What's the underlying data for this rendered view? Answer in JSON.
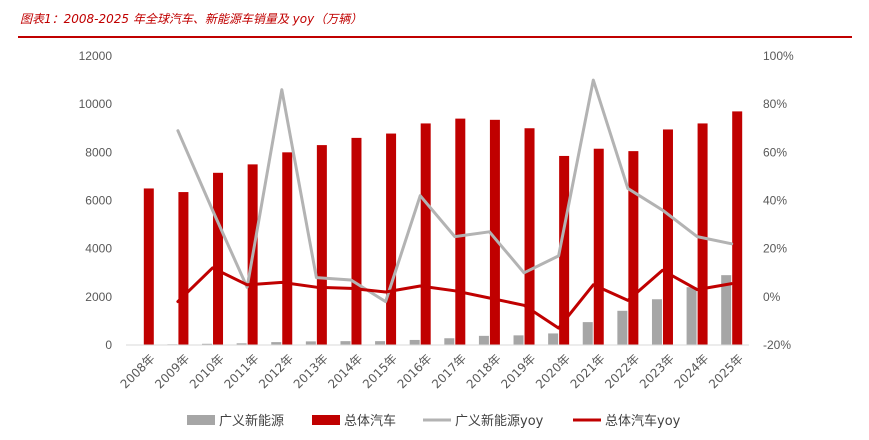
{
  "figure_title": "图表1：2008-2025 年全球汽车、新能源车销量及 yoy（万辆）",
  "colors": {
    "title": "#c00000",
    "nev_bar": "#a6a6a6",
    "total_bar": "#c00000",
    "nev_yoy_line": "#b3b3b3",
    "total_yoy_line": "#c00000"
  },
  "chart_data": {
    "type": "bar",
    "categories": [
      "2008年",
      "2009年",
      "2010年",
      "2011年",
      "2012年",
      "2013年",
      "2014年",
      "2015年",
      "2016年",
      "2017年",
      "2018年",
      "2019年",
      "2020年",
      "2021年",
      "2022年",
      "2023年",
      "2024年",
      "2025年"
    ],
    "y_left": {
      "ylim": [
        0,
        12000
      ],
      "ticks": [
        "0",
        "2000",
        "4000",
        "6000",
        "8000",
        "10000",
        "12000"
      ]
    },
    "y_right": {
      "ylim": [
        -0.2,
        1.0
      ],
      "ticks": [
        "-20%",
        "0%",
        "20%",
        "40%",
        "60%",
        "80%",
        "100%"
      ]
    },
    "grid": false,
    "legend_position": "bottom",
    "series": [
      {
        "name": "广义新能源",
        "type": "bar",
        "axis": "left",
        "values": [
          20,
          30,
          50,
          70,
          120,
          150,
          160,
          160,
          210,
          280,
          380,
          400,
          480,
          950,
          1420,
          1900,
          2400,
          2900
        ]
      },
      {
        "name": "总体汽车",
        "type": "bar",
        "axis": "left",
        "values": [
          6500,
          6350,
          7150,
          7500,
          8000,
          8300,
          8600,
          8780,
          9200,
          9400,
          9350,
          9000,
          7850,
          8150,
          8050,
          8950,
          9200,
          9700
        ]
      },
      {
        "name": "广义新能源yoy",
        "type": "line",
        "axis": "right",
        "values": [
          null,
          0.69,
          0.36,
          0.04,
          0.86,
          0.08,
          0.07,
          -0.02,
          0.42,
          0.25,
          0.27,
          0.1,
          0.17,
          0.9,
          0.45,
          0.36,
          0.25,
          0.22
        ]
      },
      {
        "name": "总体汽车yoy",
        "type": "line",
        "axis": "right",
        "values": [
          null,
          -0.02,
          0.12,
          0.05,
          0.06,
          0.04,
          0.035,
          0.02,
          0.045,
          0.025,
          -0.005,
          -0.035,
          -0.13,
          0.05,
          -0.015,
          0.11,
          0.03,
          0.055
        ]
      }
    ]
  }
}
